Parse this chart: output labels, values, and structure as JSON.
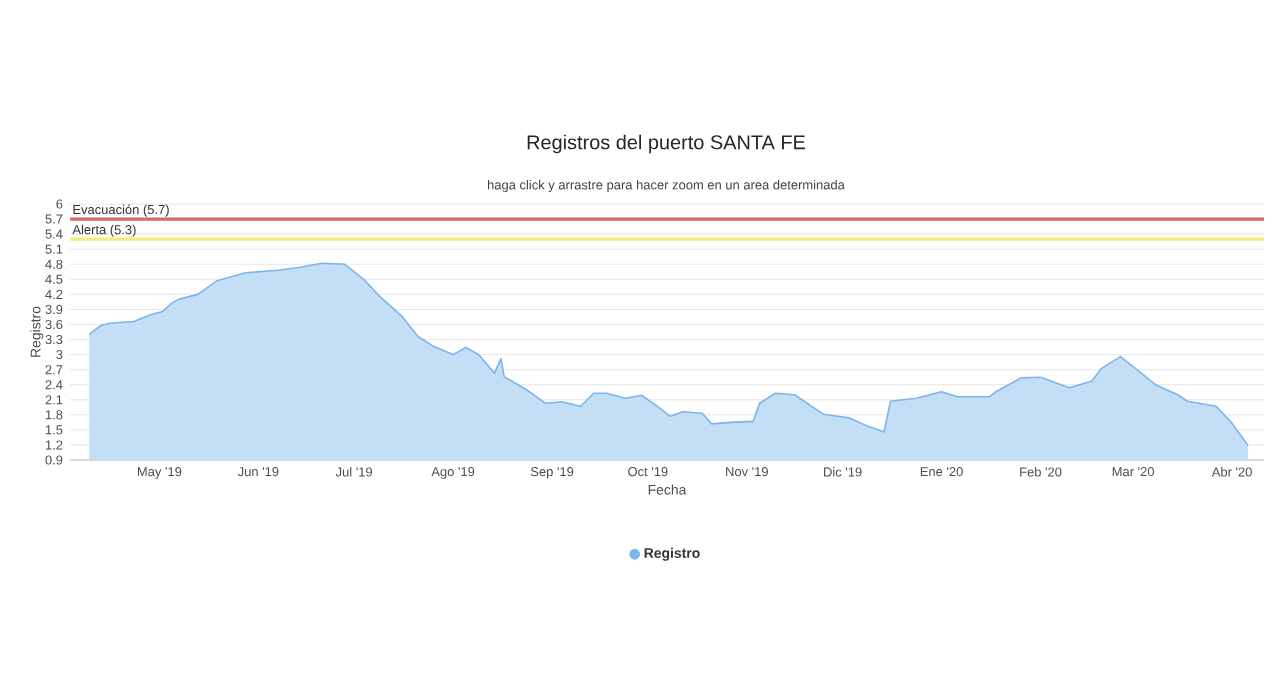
{
  "chart_data": {
    "type": "area",
    "title": "Registros del puerto SANTA FE",
    "subtitle": "haga click y arrastre para hacer zoom en un area determinada",
    "xlabel": "Fecha",
    "ylabel": "Registro",
    "series": [
      {
        "name": "Registro",
        "color": "#7cb5ec",
        "x": [
          "2019-04-09",
          "2019-04-11",
          "2019-04-13",
          "2019-04-16",
          "2019-04-23",
          "2019-04-28",
          "2019-05-02",
          "2019-05-05",
          "2019-05-07",
          "2019-05-13",
          "2019-05-19",
          "2019-05-28",
          "2019-06-07",
          "2019-06-14",
          "2019-06-21",
          "2019-06-28",
          "2019-07-04",
          "2019-07-09",
          "2019-07-16",
          "2019-07-21",
          "2019-07-26",
          "2019-08-01",
          "2019-08-05",
          "2019-08-09",
          "2019-08-14",
          "2019-08-16",
          "2019-08-17",
          "2019-08-24",
          "2019-08-30",
          "2019-09-04",
          "2019-09-10",
          "2019-09-14",
          "2019-09-18",
          "2019-09-24",
          "2019-09-29",
          "2019-10-04",
          "2019-10-08",
          "2019-10-12",
          "2019-10-18",
          "2019-10-21",
          "2019-10-27",
          "2019-11-03",
          "2019-11-05",
          "2019-11-10",
          "2019-11-16",
          "2019-11-25",
          "2019-12-03",
          "2019-12-09",
          "2019-12-14",
          "2019-12-16",
          "2019-12-24",
          "2020-01-01",
          "2020-01-06",
          "2020-01-16",
          "2020-01-18",
          "2020-01-26",
          "2020-02-01",
          "2020-02-10",
          "2020-02-17",
          "2020-02-20",
          "2020-02-26",
          "2020-03-01",
          "2020-03-08",
          "2020-03-15",
          "2020-03-18",
          "2020-03-27",
          "2020-04-01",
          "2020-04-06"
        ],
        "values": [
          3.4,
          3.5,
          3.59,
          3.63,
          3.66,
          3.79,
          3.86,
          4.03,
          4.1,
          4.2,
          4.47,
          4.63,
          4.68,
          4.74,
          4.82,
          4.8,
          4.5,
          4.16,
          3.76,
          3.36,
          3.16,
          3.0,
          3.14,
          3.0,
          2.63,
          2.92,
          2.56,
          2.3,
          2.03,
          2.06,
          1.97,
          2.23,
          2.23,
          2.13,
          2.19,
          1.97,
          1.77,
          1.86,
          1.83,
          1.62,
          1.65,
          1.67,
          2.03,
          2.23,
          2.2,
          1.81,
          1.74,
          1.57,
          1.46,
          2.07,
          2.13,
          2.26,
          2.16,
          2.16,
          2.26,
          2.54,
          2.55,
          2.34,
          2.47,
          2.72,
          2.96,
          2.76,
          2.4,
          2.2,
          2.07,
          1.97,
          1.63,
          1.19
        ]
      }
    ],
    "xlim": [
      "2019-04-03",
      "2020-04-11"
    ],
    "xticks": [
      {
        "value": "2019-05-01",
        "label": "May '19"
      },
      {
        "value": "2019-06-01",
        "label": "Jun '19"
      },
      {
        "value": "2019-07-01",
        "label": "Jul '19"
      },
      {
        "value": "2019-08-01",
        "label": "Ago '19"
      },
      {
        "value": "2019-09-01",
        "label": "Sep '19"
      },
      {
        "value": "2019-10-01",
        "label": "Oct '19"
      },
      {
        "value": "2019-11-01",
        "label": "Nov '19"
      },
      {
        "value": "2019-12-01",
        "label": "Dic '19"
      },
      {
        "value": "2020-01-01",
        "label": "Ene '20"
      },
      {
        "value": "2020-02-01",
        "label": "Feb '20"
      },
      {
        "value": "2020-03-01",
        "label": "Mar '20"
      },
      {
        "value": "2020-04-01",
        "label": "Abr '20"
      }
    ],
    "ylim": [
      0.9,
      6
    ],
    "yticks": [
      0.9,
      1.2,
      1.5,
      1.8,
      2.1,
      2.4,
      2.7,
      3,
      3.3,
      3.6,
      3.9,
      4.2,
      4.5,
      4.8,
      5.1,
      5.4,
      5.7,
      6
    ],
    "ref_lines": [
      {
        "axis": "y",
        "value": 5.7,
        "label": "Evacuación (5.7)",
        "color": "#d46a6a"
      },
      {
        "axis": "y",
        "value": 5.3,
        "label": "Alerta (5.3)",
        "color": "#f2ee78"
      }
    ],
    "grid": "y",
    "legend": "bottom",
    "marker": "none"
  }
}
